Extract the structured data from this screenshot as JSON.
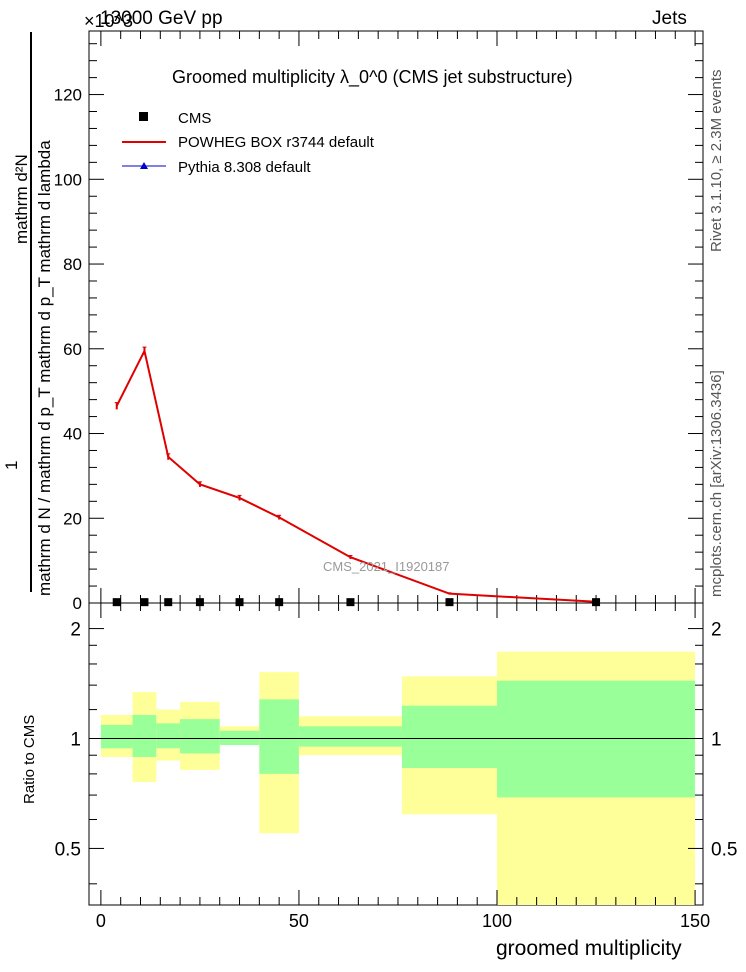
{
  "header": {
    "energy": "13000 GeV pp",
    "process": "Jets",
    "multiplier": "×10^3"
  },
  "side_labels": {
    "rivet": "Rivet 3.1.10, ≥ 2.3M events",
    "mcplots": "mcplots.cern.ch [arXiv:1306.3436]"
  },
  "colors": {
    "powheg": "#e00000",
    "pythia": "#0000cc",
    "cms": "#000000",
    "band_outer": "#ffff99",
    "band_inner": "#99ff99"
  },
  "chart_data": [
    {
      "type": "line",
      "title": "Groomed multiplicity  λ_0^0 (CMS jet substructure)",
      "ylabel_numerator": "mathrm d²N",
      "ylabel_denominator": "mathrm d N / mathrm d p_T mathrm d p_T mathrm d lambda",
      "ylabel_prefix": "1",
      "watermark": "CMS_2021_I1920187",
      "xlim": [
        -3,
        152
      ],
      "ylim": [
        0,
        135
      ],
      "y_scale_note": "×10^3",
      "yticks": [
        0,
        20,
        40,
        60,
        80,
        100,
        120
      ],
      "legend": {
        "placement": "top-left",
        "entries": [
          "CMS",
          "POWHEG BOX r3744 default",
          "Pythia 8.308 default"
        ]
      },
      "series": [
        {
          "name": "CMS",
          "marker": "square",
          "x": [
            4,
            11,
            17,
            25,
            35,
            45,
            63,
            88,
            125
          ],
          "y": [
            0.2,
            0.2,
            0.2,
            0.2,
            0.2,
            0.2,
            0.2,
            0.2,
            0.2
          ]
        },
        {
          "name": "POWHEG BOX r3744 default",
          "x": [
            4,
            11,
            17,
            25,
            35,
            45,
            63,
            88,
            125
          ],
          "y": [
            46.5,
            59.5,
            34.5,
            28,
            24.8,
            20.2,
            10.8,
            2.2,
            0.3
          ],
          "yerr": [
            0.8,
            0.9,
            0.7,
            0.6,
            0.6,
            0.5,
            0.4,
            0.2,
            0.1
          ]
        },
        {
          "name": "Pythia 8.308 default",
          "x": [],
          "y": []
        }
      ]
    },
    {
      "type": "area",
      "ylabel": "Ratio to CMS",
      "xlabel": "groomed multiplicity",
      "xlim": [
        -3,
        152
      ],
      "ylim": [
        0.35,
        2.35
      ],
      "log_y": true,
      "yticks": [
        0.5,
        1,
        2
      ],
      "xticks": [
        0,
        50,
        100,
        150
      ],
      "reference": 1,
      "bins": [
        {
          "lo": 0,
          "hi": 8,
          "outer": [
            0.89,
            1.16
          ],
          "inner": [
            0.94,
            1.09
          ]
        },
        {
          "lo": 8,
          "hi": 14,
          "outer": [
            0.76,
            1.34
          ],
          "inner": [
            0.89,
            1.16
          ]
        },
        {
          "lo": 14,
          "hi": 20,
          "outer": [
            0.87,
            1.2
          ],
          "inner": [
            0.94,
            1.1
          ]
        },
        {
          "lo": 20,
          "hi": 30,
          "outer": [
            0.82,
            1.26
          ],
          "inner": [
            0.91,
            1.13
          ]
        },
        {
          "lo": 30,
          "hi": 40,
          "outer": [
            0.96,
            1.08
          ],
          "inner": [
            0.96,
            1.05
          ]
        },
        {
          "lo": 40,
          "hi": 50,
          "outer": [
            0.55,
            1.52
          ],
          "inner": [
            0.8,
            1.28
          ]
        },
        {
          "lo": 50,
          "hi": 76,
          "outer": [
            0.9,
            1.15
          ],
          "inner": [
            0.95,
            1.08
          ]
        },
        {
          "lo": 76,
          "hi": 100,
          "outer": [
            0.62,
            1.48
          ],
          "inner": [
            0.83,
            1.23
          ]
        },
        {
          "lo": 100,
          "hi": 150,
          "outer": [
            0.35,
            1.73
          ],
          "inner": [
            0.69,
            1.44
          ]
        }
      ]
    }
  ]
}
